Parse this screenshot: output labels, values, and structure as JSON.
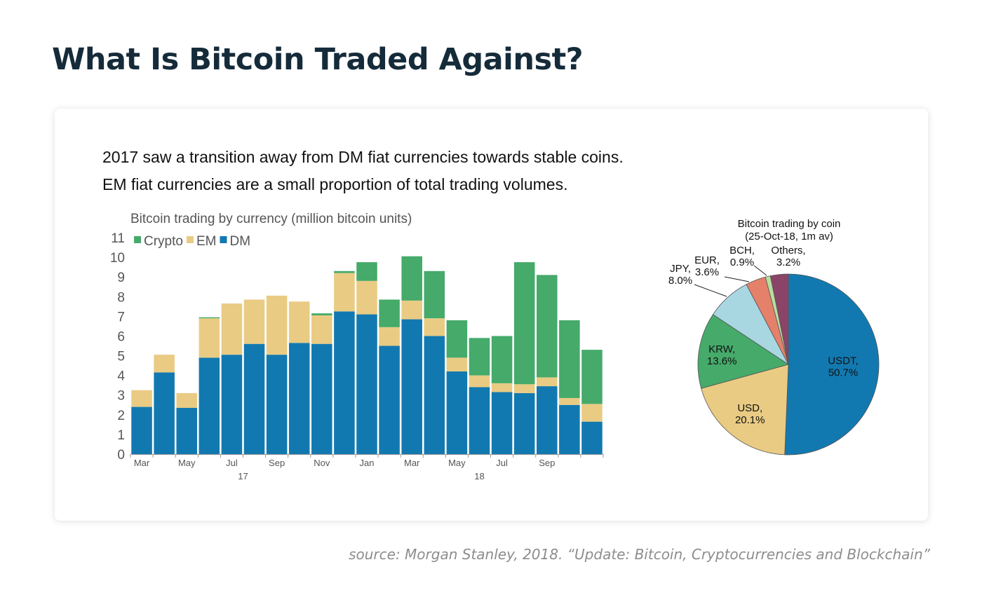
{
  "page": {
    "title": "What Is Bitcoin Traded Against?",
    "subtitle_lines": [
      "2017 saw a transition away from DM fiat currencies towards stable coins.",
      "EM fiat currencies are a small proportion of total trading volumes."
    ],
    "source": "source: Morgan Stanley, 2018. “Update: Bitcoin, Cryptocurrencies and Blockchain”"
  },
  "chart_data": [
    {
      "type": "bar",
      "stacked": true,
      "title": "Bitcoin trading by currency (million bitcoin units)",
      "xlabel": "",
      "ylabel": "",
      "ylim": [
        0,
        11
      ],
      "yticks": [
        0,
        1,
        2,
        3,
        4,
        5,
        6,
        7,
        8,
        9,
        10,
        11
      ],
      "x_tick_labels": [
        {
          "index": 0.5,
          "label": "Mar"
        },
        {
          "index": 2.5,
          "label": "May"
        },
        {
          "index": 4.5,
          "label": "Jul"
        },
        {
          "index": 6.5,
          "label": "Sep"
        },
        {
          "index": 8.5,
          "label": "Nov"
        },
        {
          "index": 10.5,
          "label": "Jan"
        },
        {
          "index": 12.5,
          "label": "Mar"
        },
        {
          "index": 14.5,
          "label": "May"
        },
        {
          "index": 16.5,
          "label": "Jul"
        },
        {
          "index": 18.5,
          "label": "Sep"
        }
      ],
      "x_group_labels": [
        {
          "index": 5.0,
          "label": "17"
        },
        {
          "index": 15.5,
          "label": "18"
        }
      ],
      "grid": false,
      "legend_position": "top-left",
      "series": [
        {
          "name": "DM",
          "color": "#1279b0",
          "values": [
            2.4,
            4.15,
            2.35,
            4.9,
            5.05,
            5.6,
            5.05,
            5.65,
            5.6,
            7.25,
            7.1,
            5.5,
            6.85,
            6.0,
            4.2,
            3.4,
            3.15,
            3.1,
            3.45,
            2.5,
            1.65
          ]
        },
        {
          "name": "EM",
          "color": "#e9cb83",
          "values": [
            0.85,
            0.9,
            0.75,
            2.0,
            2.6,
            2.25,
            3.0,
            2.1,
            1.45,
            1.95,
            1.7,
            0.95,
            0.95,
            0.9,
            0.7,
            0.6,
            0.45,
            0.45,
            0.45,
            0.35,
            0.9
          ]
        },
        {
          "name": "Crypto",
          "color": "#45aa6a",
          "values": [
            0.0,
            0.0,
            0.0,
            0.05,
            0.0,
            0.0,
            0.0,
            0.0,
            0.1,
            0.1,
            0.95,
            1.4,
            2.25,
            2.4,
            1.9,
            1.9,
            2.4,
            6.2,
            5.2,
            3.95,
            2.75
          ]
        }
      ],
      "legend_order": [
        "Crypto",
        "EM",
        "DM"
      ]
    },
    {
      "type": "pie",
      "title_lines": [
        "Bitcoin trading by coin",
        "(25-Oct-18,  1m av)"
      ],
      "slices": [
        {
          "label": "USDT,",
          "value": 50.7,
          "value_label": "50.7%",
          "color": "#1279b0",
          "label_placement": "inside"
        },
        {
          "label": "USD,",
          "value": 20.1,
          "value_label": "20.1%",
          "color": "#e9cb83",
          "label_placement": "inside"
        },
        {
          "label": "KRW,",
          "value": 13.6,
          "value_label": "13.6%",
          "color": "#45aa6a",
          "label_placement": "inside"
        },
        {
          "label": "JPY,",
          "value": 8.0,
          "value_label": "8.0%",
          "color": "#a8d7e2",
          "label_placement": "outside"
        },
        {
          "label": "EUR,",
          "value": 3.6,
          "value_label": "3.6%",
          "color": "#e5806a",
          "label_placement": "outside"
        },
        {
          "label": "BCH,",
          "value": 0.9,
          "value_label": "0.9%",
          "color": "#b9dfa0",
          "label_placement": "outside"
        },
        {
          "label": "Others,",
          "value": 3.2,
          "value_label": "3.2%",
          "color": "#8a4468",
          "label_placement": "outside"
        }
      ]
    }
  ]
}
